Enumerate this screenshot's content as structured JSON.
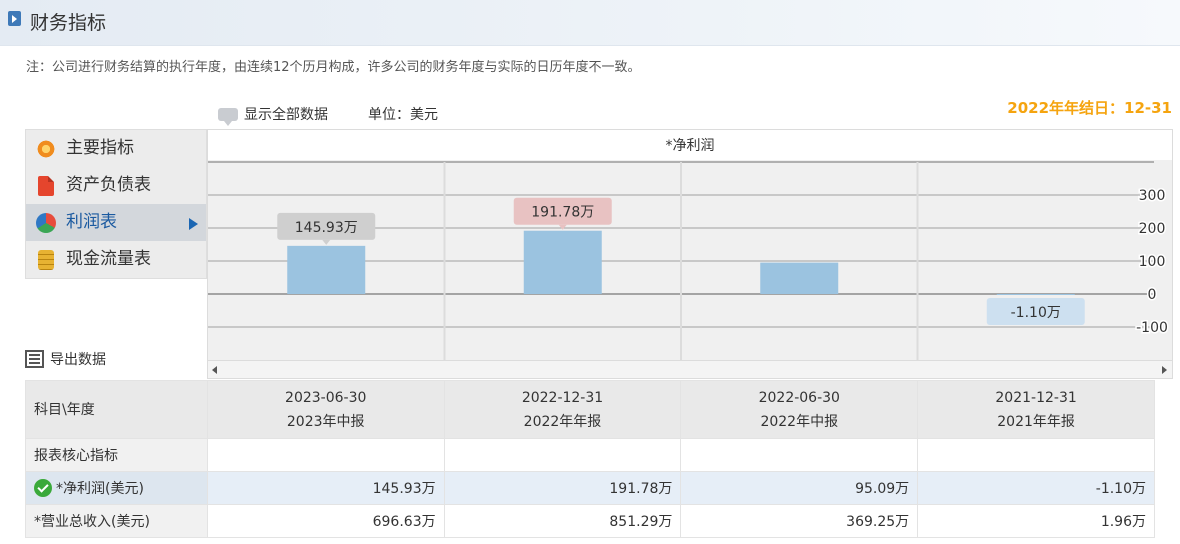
{
  "header": {
    "title": "财务指标",
    "note": "注：公司进行财务结算的执行年度，由连续12个历月构成，许多公司的财务年度与实际的日历年度不一致。"
  },
  "controls": {
    "show_all": "显示全部数据",
    "unit": "单位：美元",
    "fiscal_year_end": "2022年年结日：12-31",
    "export": "导出数据"
  },
  "sidebar": {
    "items": [
      {
        "label": "主要指标",
        "icon": "flower-icon"
      },
      {
        "label": "资产负债表",
        "icon": "document-icon"
      },
      {
        "label": "利润表",
        "icon": "pie-chart-icon",
        "active": true
      },
      {
        "label": "现金流量表",
        "icon": "coins-icon"
      }
    ]
  },
  "chart_data": {
    "type": "bar",
    "title": "*净利润",
    "categories": [
      "2023-06-30",
      "2022-12-31",
      "2022-06-30",
      "2021-12-31"
    ],
    "values": [
      145.93,
      191.78,
      95.09,
      -1.1
    ],
    "data_labels": [
      "145.93万",
      "191.78万",
      "",
      "-1.10万"
    ],
    "yticks": [
      300,
      200,
      100,
      0,
      -100
    ],
    "ylim": [
      -150,
      400
    ],
    "bar_color": "#9bc3e0",
    "label_colors": [
      "#cfcfcf",
      "#e8c2c2",
      "",
      "#cde0f0"
    ]
  },
  "table": {
    "corner": "科目\\年度",
    "columns": [
      {
        "date": "2023-06-30",
        "period": "2023年中报"
      },
      {
        "date": "2022-12-31",
        "period": "2022年年报"
      },
      {
        "date": "2022-06-30",
        "period": "2022年中报"
      },
      {
        "date": "2021-12-31",
        "period": "2021年年报"
      }
    ],
    "section_label": "报表核心指标",
    "rows": [
      {
        "label": "*净利润(美元)",
        "values": [
          "145.93万",
          "191.78万",
          "95.09万",
          "-1.10万"
        ]
      },
      {
        "label": "*营业总收入(美元)",
        "values": [
          "696.63万",
          "851.29万",
          "369.25万",
          "1.96万"
        ]
      }
    ]
  }
}
